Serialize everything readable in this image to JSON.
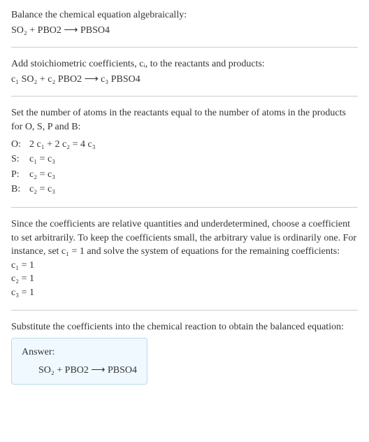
{
  "title": "Balance the chemical equation algebraically:",
  "mainReaction": "SO₂ + PBO2 ⟶ PBSO4",
  "coeffIntro": "Add stoichiometric coefficients, cᵢ, to the reactants and products:",
  "coeffReaction": "c₁ SO₂ + c₂ PBO2 ⟶ c₃ PBSO4",
  "atomsIntro": "Set the number of atoms in the reactants equal to the number of atoms in the products for O, S, P and B:",
  "atomEqs": [
    {
      "label": "O:",
      "eq": "2 c₁ + 2 c₂ = 4 c₃"
    },
    {
      "label": "S:",
      "eq": "c₁ = c₃"
    },
    {
      "label": "P:",
      "eq": "c₂ = c₃"
    },
    {
      "label": "B:",
      "eq": "c₂ = c₃"
    }
  ],
  "underdetIntro": "Since the coefficients are relative quantities and underdetermined, choose a coefficient to set arbitrarily. To keep the coefficients small, the arbitrary value is ordinarily one. For instance, set c₁ = 1 and solve the system of equations for the remaining coefficients:",
  "solved": [
    "c₁ = 1",
    "c₂ = 1",
    "c₃ = 1"
  ],
  "substIntro": "Substitute the coefficients into the chemical reaction to obtain the balanced equation:",
  "answerLabel": "Answer:",
  "answerReaction": "SO₂ + PBO2 ⟶ PBSO4",
  "colors": {
    "text": "#333333",
    "rule": "#cccccc",
    "answerBg": "#f0f9ff",
    "answerBorder": "#b8dce8"
  }
}
